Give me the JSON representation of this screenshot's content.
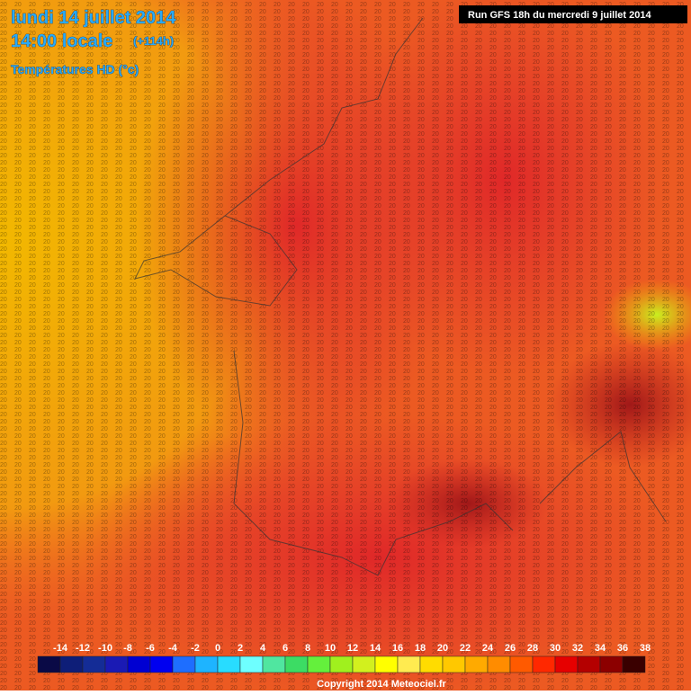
{
  "header": {
    "date": "lundi 14 juillet 2014",
    "time": "14:00 locale",
    "offset": "(+114h)",
    "field": "Températures HD (°c)",
    "run": "Run GFS 18h du mercredi 9 juillet 2014"
  },
  "legend": {
    "labels": [
      -14,
      -12,
      -10,
      -8,
      -6,
      -4,
      -2,
      0,
      2,
      4,
      6,
      8,
      10,
      12,
      14,
      16,
      18,
      20,
      22,
      24,
      26,
      28,
      30,
      32,
      34,
      36,
      38
    ],
    "colors": [
      "#0a0a46",
      "#0e1e78",
      "#142c96",
      "#1a1ab4",
      "#0000d2",
      "#0000f0",
      "#1e6eff",
      "#1eb4ff",
      "#28dcff",
      "#6effff",
      "#50e6a0",
      "#3cdc64",
      "#64f03c",
      "#a0f01e",
      "#d2f01e",
      "#ffff00",
      "#ffeb50",
      "#ffdc00",
      "#ffc800",
      "#ffaa00",
      "#ff8c00",
      "#ff5a00",
      "#ff2800",
      "#e60000",
      "#b40000",
      "#8c0000",
      "#3a0000"
    ]
  },
  "footer": {
    "copyright": "Copyright 2014 Meteociel.fr"
  }
}
